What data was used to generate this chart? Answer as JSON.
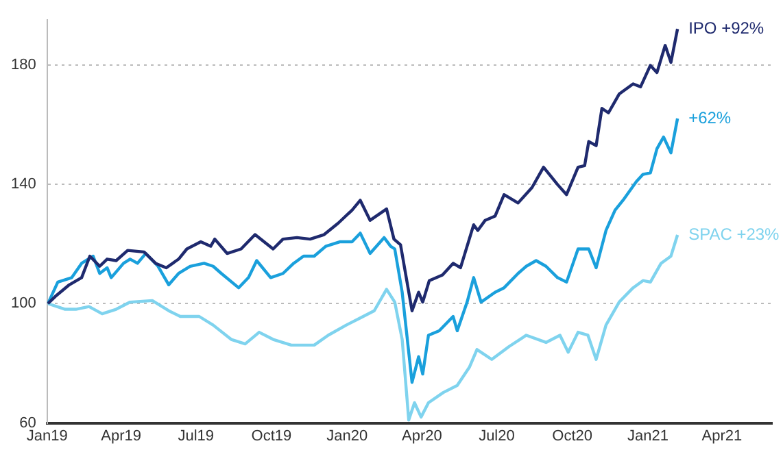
{
  "chart_data": {
    "type": "line",
    "xlim": [
      "2019-01-01",
      "2021-06-01"
    ],
    "ylim": [
      60,
      195
    ],
    "xticks": [
      {
        "value": "2019-01-01",
        "label": "Jan19"
      },
      {
        "value": "2019-04-01",
        "label": "Apr19"
      },
      {
        "value": "2019-07-01",
        "label": "Jul19"
      },
      {
        "value": "2019-10-01",
        "label": "Oct19"
      },
      {
        "value": "2020-01-01",
        "label": "Jan20"
      },
      {
        "value": "2020-04-01",
        "label": "Apr20"
      },
      {
        "value": "2020-07-01",
        "label": "Jul20"
      },
      {
        "value": "2020-10-01",
        "label": "Oct20"
      },
      {
        "value": "2021-01-01",
        "label": "Jan21"
      },
      {
        "value": "2021-04-01",
        "label": "Apr21"
      }
    ],
    "yticks": [
      60,
      100,
      140,
      180
    ],
    "grid": "y",
    "legend": false,
    "marker": "none",
    "line_style": "solid",
    "series": [
      {
        "name": "IPO +92%",
        "color": "#1f2a6e",
        "x": [
          "2019-01-02",
          "2019-01-11",
          "2019-01-28",
          "2019-02-12",
          "2019-02-22",
          "2019-03-06",
          "2019-03-15",
          "2019-03-26",
          "2019-04-09",
          "2019-04-29",
          "2019-05-13",
          "2019-05-26",
          "2019-06-10",
          "2019-06-20",
          "2019-07-07",
          "2019-07-19",
          "2019-07-24",
          "2019-08-08",
          "2019-08-25",
          "2019-09-11",
          "2019-10-03",
          "2019-10-15",
          "2019-11-01",
          "2019-11-17",
          "2019-12-04",
          "2019-12-21",
          "2020-01-07",
          "2020-01-17",
          "2020-01-29",
          "2020-02-18",
          "2020-02-27",
          "2020-03-06",
          "2020-03-20",
          "2020-03-28",
          "2020-04-02",
          "2020-04-10",
          "2020-04-26",
          "2020-05-09",
          "2020-05-18",
          "2020-06-03",
          "2020-06-08",
          "2020-06-17",
          "2020-06-29",
          "2020-07-10",
          "2020-07-27",
          "2020-08-13",
          "2020-08-27",
          "2020-09-13",
          "2020-09-24",
          "2020-10-08",
          "2020-10-16",
          "2020-10-21",
          "2020-10-30",
          "2020-11-06",
          "2020-11-14",
          "2020-11-27",
          "2020-12-14",
          "2020-12-23",
          "2021-01-04",
          "2021-01-12",
          "2021-01-22",
          "2021-01-29",
          "2021-02-06"
        ],
        "values": [
          100,
          102.4,
          106.3,
          108.7,
          115.9,
          112.5,
          114.9,
          114.4,
          117.8,
          117.3,
          113.5,
          112,
          114.9,
          118.3,
          120.7,
          119.2,
          121.6,
          116.8,
          118.3,
          123.1,
          118.3,
          121.6,
          122.1,
          121.6,
          123.1,
          126.9,
          131.3,
          134.6,
          127.9,
          131.7,
          121.6,
          119.7,
          97.6,
          103.8,
          100.5,
          107.7,
          109.6,
          113.5,
          112,
          126.4,
          124.5,
          127.9,
          129.3,
          136.5,
          133.7,
          138.9,
          145.7,
          139.9,
          136.5,
          145.7,
          146.2,
          154.3,
          152.9,
          165.4,
          163.9,
          170.2,
          173.6,
          172.6,
          179.8,
          177.4,
          186.5,
          180.8,
          192
        ]
      },
      {
        "name": "+62%",
        "color": "#1aa0dc",
        "x": [
          "2019-01-02",
          "2019-01-14",
          "2019-01-31",
          "2019-02-12",
          "2019-02-26",
          "2019-03-06",
          "2019-03-15",
          "2019-03-20",
          "2019-04-04",
          "2019-04-12",
          "2019-04-21",
          "2019-05-01",
          "2019-05-16",
          "2019-05-29",
          "2019-06-10",
          "2019-06-24",
          "2019-07-11",
          "2019-07-22",
          "2019-08-01",
          "2019-08-22",
          "2019-09-03",
          "2019-09-13",
          "2019-09-30",
          "2019-10-15",
          "2019-10-28",
          "2019-11-09",
          "2019-11-22",
          "2019-12-06",
          "2019-12-23",
          "2020-01-07",
          "2020-01-17",
          "2020-01-29",
          "2020-02-15",
          "2020-02-23",
          "2020-02-28",
          "2020-03-08",
          "2020-03-20",
          "2020-03-28",
          "2020-04-02",
          "2020-04-09",
          "2020-04-22",
          "2020-05-09",
          "2020-05-14",
          "2020-05-26",
          "2020-06-03",
          "2020-06-12",
          "2020-06-29",
          "2020-07-10",
          "2020-07-27",
          "2020-08-06",
          "2020-08-18",
          "2020-08-30",
          "2020-09-13",
          "2020-09-24",
          "2020-10-08",
          "2020-10-21",
          "2020-10-30",
          "2020-11-11",
          "2020-11-22",
          "2020-12-03",
          "2020-12-18",
          "2020-12-26",
          "2021-01-04",
          "2021-01-12",
          "2021-01-20",
          "2021-01-29",
          "2021-02-06"
        ],
        "values": [
          100,
          107.2,
          108.7,
          113.5,
          115.9,
          110.1,
          112,
          108.7,
          113.5,
          114.9,
          113.5,
          116.8,
          112.5,
          106.3,
          110.1,
          112.5,
          113.5,
          112.5,
          110.1,
          105.3,
          108.7,
          114.4,
          108.7,
          110.1,
          113.5,
          115.9,
          115.9,
          119.2,
          120.7,
          120.7,
          123.6,
          116.8,
          122.1,
          119.2,
          118.3,
          103.8,
          73.6,
          82.2,
          76.4,
          89.4,
          90.9,
          95.7,
          90.9,
          100.5,
          108.7,
          100.5,
          103.8,
          105.3,
          110.1,
          112.5,
          114.4,
          112.5,
          108.7,
          107.2,
          118.3,
          118.3,
          112,
          124.5,
          131.3,
          135.1,
          140.9,
          143.3,
          143.8,
          151.9,
          155.8,
          150.5,
          162
        ]
      },
      {
        "name": "SPAC +23%",
        "color": "#7fd3ee",
        "x": [
          "2019-01-02",
          "2019-01-23",
          "2019-02-05",
          "2019-02-21",
          "2019-03-09",
          "2019-03-26",
          "2019-04-12",
          "2019-05-09",
          "2019-05-29",
          "2019-06-12",
          "2019-07-05",
          "2019-07-22",
          "2019-08-13",
          "2019-08-30",
          "2019-09-16",
          "2019-10-03",
          "2019-10-25",
          "2019-11-22",
          "2019-12-09",
          "2019-12-31",
          "2020-01-17",
          "2020-02-03",
          "2020-02-18",
          "2020-02-28",
          "2020-03-08",
          "2020-03-16",
          "2020-03-23",
          "2020-03-31",
          "2020-04-09",
          "2020-04-27",
          "2020-05-14",
          "2020-05-29",
          "2020-06-07",
          "2020-06-25",
          "2020-07-16",
          "2020-08-06",
          "2020-08-30",
          "2020-09-16",
          "2020-09-26",
          "2020-10-08",
          "2020-10-20",
          "2020-10-30",
          "2020-11-11",
          "2020-11-27",
          "2020-12-14",
          "2020-12-26",
          "2021-01-04",
          "2021-01-17",
          "2021-01-29",
          "2021-02-06"
        ],
        "values": [
          100,
          98.1,
          98.1,
          99,
          96.6,
          98.1,
          100.5,
          101,
          97.6,
          95.7,
          95.7,
          92.8,
          88,
          86.5,
          90.4,
          88,
          86.1,
          86.1,
          89.4,
          92.8,
          95.2,
          97.6,
          104.8,
          100.5,
          88,
          61,
          66.8,
          62,
          66.8,
          70.2,
          72.6,
          78.8,
          84.6,
          81.3,
          85.6,
          89.4,
          87,
          89.4,
          83.7,
          90.4,
          89.4,
          81.3,
          92.8,
          100.5,
          105.3,
          107.7,
          107.2,
          113.5,
          115.9,
          123
        ]
      }
    ]
  }
}
